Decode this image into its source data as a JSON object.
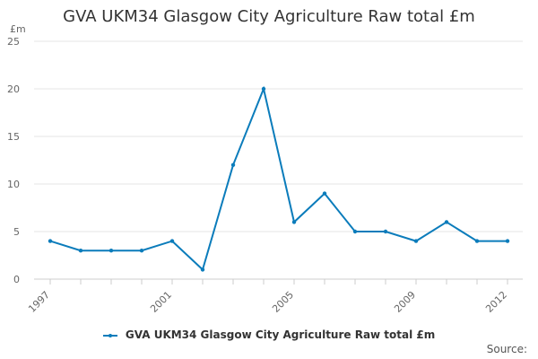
{
  "chart_data": {
    "type": "line",
    "title": "GVA UKM34 Glasgow City Agriculture Raw total £m",
    "ylabel": "£m",
    "xlabel": "",
    "x": [
      1997,
      1998,
      1999,
      2000,
      2001,
      2002,
      2003,
      2004,
      2005,
      2006,
      2007,
      2008,
      2009,
      2010,
      2011,
      2012
    ],
    "series": [
      {
        "name": "GVA UKM34 Glasgow City Agriculture Raw total £m",
        "values": [
          4,
          3,
          3,
          3,
          4,
          1,
          12,
          20,
          6,
          9,
          5,
          5,
          4,
          6,
          4,
          4
        ],
        "color": "#0b7cbb"
      }
    ],
    "ylim": [
      0,
      25
    ],
    "yticks": [
      0,
      5,
      10,
      15,
      20,
      25
    ],
    "xtick_labels": [
      "1997",
      "2001",
      "2005",
      "2009",
      "2012"
    ],
    "grid": "horizontal",
    "legend_position": "bottom"
  },
  "footer": {
    "source_label": "Source:"
  }
}
